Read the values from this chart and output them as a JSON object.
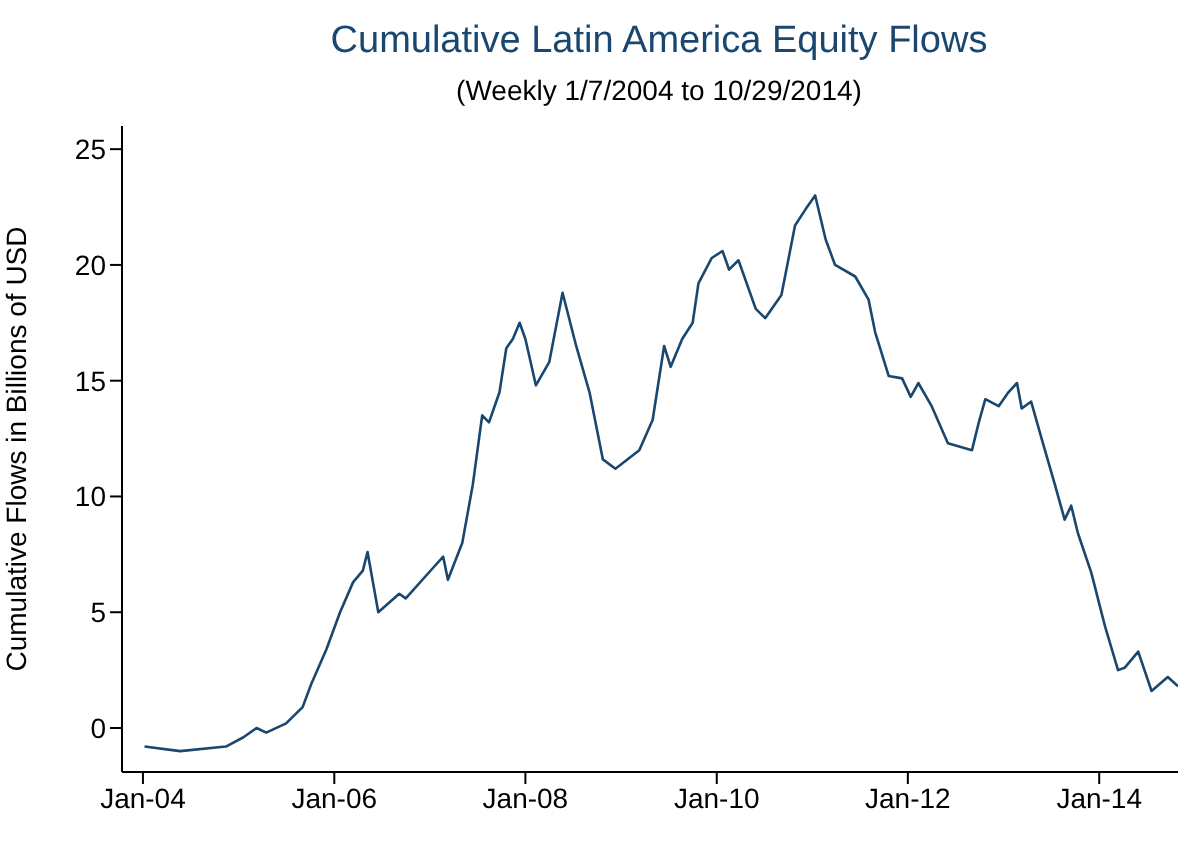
{
  "chart_data": {
    "type": "line",
    "title": "Cumulative Latin America Equity Flows",
    "subtitle": "(Weekly 1/7/2004 to 10/29/2014)",
    "ylabel": "Cumulative Flows in Billions of USD",
    "x": [
      "2004-01-07",
      "2004-05-22",
      "2004-11-13",
      "2005-01-19",
      "2005-03-10",
      "2005-04-16",
      "2005-07-01",
      "2005-09-02",
      "2005-10-05",
      "2005-12-02",
      "2006-01-23",
      "2006-03-14",
      "2006-04-20",
      "2006-05-08",
      "2006-06-18",
      "2006-09-06",
      "2006-10-01",
      "2007-01-12",
      "2007-02-21",
      "2007-03-11",
      "2007-05-05",
      "2007-06-14",
      "2007-07-20",
      "2007-08-15",
      "2007-09-24",
      "2007-10-20",
      "2007-11-14",
      "2007-12-10",
      "2008-01-01",
      "2008-02-10",
      "2008-04-01",
      "2008-05-22",
      "2008-07-13",
      "2008-09-02",
      "2008-10-23",
      "2008-12-10",
      "2009-03-11",
      "2009-05-01",
      "2009-06-14",
      "2009-07-09",
      "2009-08-22",
      "2009-10-01",
      "2009-10-23",
      "2009-12-13",
      "2010-01-23",
      "2010-02-17",
      "2010-03-25",
      "2010-05-30",
      "2010-07-05",
      "2010-09-05",
      "2010-10-27",
      "2010-12-06",
      "2011-01-12",
      "2011-02-21",
      "2011-03-29",
      "2011-06-14",
      "2011-08-04",
      "2011-08-29",
      "2011-10-20",
      "2011-12-10",
      "2012-01-12",
      "2012-02-10",
      "2012-04-01",
      "2012-06-02",
      "2012-09-02",
      "2012-09-28",
      "2012-10-23",
      "2012-12-13",
      "2013-01-19",
      "2013-02-21",
      "2013-03-11",
      "2013-04-16",
      "2013-05-26",
      "2013-07-16",
      "2013-08-22",
      "2013-09-16",
      "2013-10-12",
      "2013-12-02",
      "2014-01-23",
      "2014-03-14",
      "2014-04-08",
      "2014-05-30",
      "2014-07-20",
      "2014-09-20",
      "2014-10-29"
    ],
    "series": [
      {
        "color": "#1a476f",
        "values": [
          -0.8,
          -1.0,
          -0.8,
          -0.4,
          0.0,
          -0.2,
          0.2,
          0.9,
          1.9,
          3.4,
          5.0,
          6.3,
          6.8,
          7.6,
          5.0,
          5.8,
          5.6,
          6.9,
          7.4,
          6.4,
          8.0,
          10.5,
          13.5,
          13.2,
          14.5,
          16.4,
          16.8,
          17.5,
          16.8,
          14.8,
          15.8,
          18.8,
          16.5,
          14.5,
          11.6,
          11.2,
          12.0,
          13.3,
          16.5,
          15.6,
          16.8,
          17.5,
          19.2,
          20.3,
          20.6,
          19.8,
          20.2,
          18.1,
          17.7,
          18.7,
          21.7,
          22.4,
          23.0,
          21.1,
          20.0,
          19.5,
          18.5,
          17.1,
          15.2,
          15.1,
          14.3,
          14.9,
          13.9,
          12.3,
          12.0,
          13.2,
          14.2,
          13.9,
          14.5,
          14.9,
          13.8,
          14.1,
          12.5,
          10.5,
          9.0,
          9.6,
          8.4,
          6.7,
          4.4,
          2.5,
          2.6,
          3.3,
          1.6,
          2.2,
          1.8
        ]
      }
    ],
    "xlim": [
      "2003-10-13",
      "2014-10-29"
    ],
    "xticks": [
      {
        "value": "2004-01-01",
        "label": "Jan-04"
      },
      {
        "value": "2006-01-01",
        "label": "Jan-06"
      },
      {
        "value": "2008-01-01",
        "label": "Jan-08"
      },
      {
        "value": "2010-01-01",
        "label": "Jan-10"
      },
      {
        "value": "2012-01-01",
        "label": "Jan-12"
      },
      {
        "value": "2014-01-01",
        "label": "Jan-14"
      }
    ],
    "ylim": [
      -1.9,
      26
    ],
    "yticks": [
      0,
      5,
      10,
      15,
      20,
      25
    ],
    "marker": "none",
    "line_style": "solid"
  }
}
